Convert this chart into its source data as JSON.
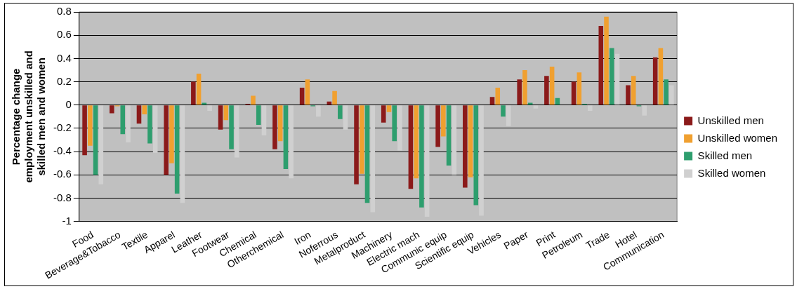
{
  "chart_data": {
    "type": "bar",
    "ylabel": "Percentage change employment unskilled and skilled men and women",
    "categories": [
      "Food",
      "Beverage&Tobacco",
      "Textile",
      "Apparel",
      "Leather",
      "Footwear",
      "Chemical",
      "Otherchemical",
      "Iron",
      "Noferrous",
      "Metalproduct",
      "Machinery",
      "Electric mach",
      "Communic equip",
      "Scientific equip",
      "Vehicles",
      "Paper",
      "Print",
      "Petroleum",
      "Trade",
      "Hotel",
      "Communication"
    ],
    "series": [
      {
        "name": "Unskilled men",
        "color": "#8b1a1a",
        "values": [
          -0.43,
          -0.07,
          -0.16,
          -0.6,
          0.2,
          -0.21,
          0.01,
          -0.38,
          0.15,
          0.03,
          -0.68,
          -0.15,
          -0.72,
          -0.36,
          -0.71,
          0.07,
          0.22,
          0.25,
          0.2,
          0.68,
          0.17,
          0.41
        ]
      },
      {
        "name": "Unskilled women",
        "color": "#f0a030",
        "values": [
          -0.35,
          -0.01,
          -0.08,
          -0.5,
          0.27,
          -0.13,
          0.08,
          -0.31,
          0.22,
          0.12,
          -0.59,
          -0.06,
          -0.63,
          -0.27,
          -0.62,
          0.15,
          0.3,
          0.33,
          0.28,
          0.76,
          0.25,
          0.49
        ]
      },
      {
        "name": "Skilled men",
        "color": "#2e9e6e",
        "values": [
          -0.6,
          -0.25,
          -0.33,
          -0.76,
          0.02,
          -0.38,
          -0.17,
          -0.55,
          -0.01,
          -0.12,
          -0.84,
          -0.31,
          -0.88,
          -0.52,
          -0.86,
          -0.1,
          0.02,
          0.06,
          0.01,
          0.49,
          -0.01,
          0.22
        ]
      },
      {
        "name": "Skilled women",
        "color": "#d0d0d0",
        "values": [
          -0.68,
          -0.32,
          -0.41,
          -0.84,
          -0.05,
          -0.45,
          -0.26,
          -0.63,
          -0.1,
          -0.21,
          -0.92,
          -0.39,
          -0.96,
          -0.6,
          -0.95,
          -0.18,
          -0.03,
          0,
          -0.05,
          0.44,
          -0.09,
          0.17
        ]
      }
    ],
    "ylim": [
      -1,
      0.8
    ],
    "yticks": [
      -1,
      -0.8,
      -0.6,
      -0.4,
      -0.2,
      0,
      0.2,
      0.4,
      0.6,
      0.8
    ],
    "grid": "y",
    "legend": "right"
  }
}
